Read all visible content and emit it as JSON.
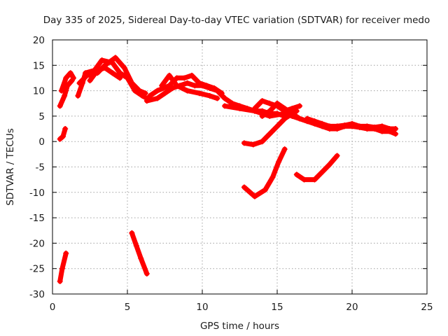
{
  "chart_data": {
    "type": "line",
    "title": "Day 335 of 2025, Sidereal Day-to-day VTEC variation (SDTVAR) for receiver medo",
    "xlabel": "GPS time / hours",
    "ylabel": "SDTVAR / TECUs",
    "xlim": [
      0,
      25
    ],
    "ylim": [
      -30,
      20
    ],
    "xticks": [
      0,
      5,
      10,
      15,
      20,
      25
    ],
    "yticks": [
      -30,
      -25,
      -20,
      -15,
      -10,
      -5,
      0,
      5,
      10,
      15,
      20
    ],
    "grid": true,
    "legend": "none",
    "color": "#ff0000",
    "series": [
      {
        "name": "track-01",
        "points": [
          [
            0.5,
            7.0
          ],
          [
            0.8,
            9.0
          ],
          [
            1.0,
            11.0
          ],
          [
            1.3,
            12.0
          ]
        ]
      },
      {
        "name": "track-02",
        "points": [
          [
            0.6,
            10.0
          ],
          [
            0.9,
            12.5
          ],
          [
            1.2,
            13.5
          ],
          [
            1.4,
            12.5
          ]
        ]
      },
      {
        "name": "track-03",
        "points": [
          [
            0.5,
            0.5
          ],
          [
            0.7,
            1.0
          ],
          [
            0.85,
            2.5
          ]
        ]
      },
      {
        "name": "track-04",
        "points": [
          [
            0.5,
            -27.5
          ],
          [
            0.65,
            -25.0
          ],
          [
            0.9,
            -22.0
          ]
        ]
      },
      {
        "name": "track-05",
        "points": [
          [
            1.7,
            9.0
          ],
          [
            2.0,
            11.5
          ],
          [
            2.2,
            13.5
          ],
          [
            2.8,
            14.0
          ],
          [
            3.3,
            16.0
          ],
          [
            4.0,
            15.5
          ],
          [
            4.5,
            13.5
          ],
          [
            5.0,
            12.5
          ],
          [
            5.5,
            10.0
          ],
          [
            6.0,
            9.0
          ],
          [
            6.3,
            8.5
          ]
        ]
      },
      {
        "name": "track-06",
        "points": [
          [
            1.8,
            11.5
          ],
          [
            2.3,
            13.0
          ],
          [
            3.0,
            13.5
          ],
          [
            3.5,
            15.0
          ],
          [
            4.2,
            16.5
          ],
          [
            4.8,
            14.5
          ],
          [
            5.3,
            11.5
          ],
          [
            5.8,
            10.0
          ],
          [
            6.2,
            9.5
          ]
        ]
      },
      {
        "name": "track-07",
        "points": [
          [
            2.5,
            12.0
          ],
          [
            3.0,
            14.0
          ],
          [
            3.5,
            14.5
          ],
          [
            4.0,
            13.5
          ],
          [
            4.5,
            12.5
          ]
        ]
      },
      {
        "name": "track-08",
        "points": [
          [
            5.3,
            -18.0
          ],
          [
            5.6,
            -20.5
          ],
          [
            5.9,
            -23.0
          ],
          [
            6.3,
            -26.0
          ]
        ]
      },
      {
        "name": "track-09",
        "points": [
          [
            6.3,
            8.0
          ],
          [
            7.0,
            8.5
          ],
          [
            7.5,
            9.5
          ],
          [
            8.0,
            10.5
          ],
          [
            8.5,
            11.0
          ],
          [
            9.0,
            11.5
          ],
          [
            9.5,
            11.0
          ],
          [
            10.0,
            11.0
          ],
          [
            10.5,
            10.5
          ],
          [
            11.0,
            10.0
          ],
          [
            11.5,
            8.5
          ],
          [
            12.0,
            7.5
          ],
          [
            12.5,
            7.0
          ],
          [
            13.0,
            6.5
          ],
          [
            13.5,
            6.0
          ],
          [
            14.0,
            6.0
          ],
          [
            14.5,
            5.5
          ],
          [
            15.0,
            5.5
          ],
          [
            15.5,
            5.0
          ]
        ]
      },
      {
        "name": "track-10",
        "points": [
          [
            6.5,
            9.0
          ],
          [
            7.0,
            10.0
          ],
          [
            7.8,
            11.0
          ],
          [
            8.3,
            12.5
          ],
          [
            8.8,
            12.5
          ],
          [
            9.3,
            13.0
          ],
          [
            9.8,
            11.5
          ],
          [
            10.3,
            11.0
          ],
          [
            10.8,
            10.5
          ],
          [
            11.3,
            9.5
          ]
        ]
      },
      {
        "name": "track-11",
        "points": [
          [
            7.3,
            11.0
          ],
          [
            7.8,
            13.0
          ],
          [
            8.3,
            11.0
          ],
          [
            9.0,
            10.0
          ],
          [
            9.8,
            9.5
          ],
          [
            10.5,
            9.0
          ],
          [
            11.0,
            8.5
          ]
        ]
      },
      {
        "name": "track-12",
        "points": [
          [
            11.5,
            7.0
          ],
          [
            12.5,
            6.5
          ],
          [
            13.5,
            6.0
          ],
          [
            14.5,
            5.0
          ],
          [
            15.5,
            5.5
          ],
          [
            16.0,
            5.0
          ],
          [
            16.5,
            4.5
          ],
          [
            17.0,
            4.0
          ]
        ]
      },
      {
        "name": "track-13",
        "points": [
          [
            13.5,
            6.5
          ],
          [
            14.0,
            8.0
          ],
          [
            14.5,
            7.5
          ],
          [
            15.0,
            7.0
          ],
          [
            15.5,
            6.0
          ],
          [
            16.0,
            6.5
          ],
          [
            16.5,
            7.0
          ]
        ]
      },
      {
        "name": "track-14",
        "points": [
          [
            14.0,
            5.0
          ],
          [
            14.5,
            6.0
          ],
          [
            15.0,
            7.5
          ],
          [
            15.5,
            6.5
          ],
          [
            16.0,
            5.5
          ],
          [
            16.5,
            4.5
          ],
          [
            17.0,
            4.0
          ],
          [
            17.5,
            3.5
          ],
          [
            18.0,
            3.0
          ],
          [
            18.5,
            2.5
          ],
          [
            19.0,
            2.5
          ],
          [
            19.5,
            3.0
          ],
          [
            20.0,
            3.0
          ],
          [
            20.5,
            2.8
          ],
          [
            21.0,
            2.5
          ],
          [
            21.5,
            2.5
          ],
          [
            22.0,
            2.0
          ],
          [
            22.5,
            2.0
          ],
          [
            22.9,
            1.5
          ]
        ]
      },
      {
        "name": "track-15",
        "points": [
          [
            17.0,
            4.5
          ],
          [
            17.5,
            4.0
          ],
          [
            18.0,
            3.5
          ],
          [
            18.5,
            3.0
          ],
          [
            19.0,
            3.0
          ],
          [
            19.5,
            3.2
          ],
          [
            20.0,
            3.5
          ],
          [
            20.5,
            3.0
          ],
          [
            21.0,
            3.0
          ],
          [
            21.5,
            2.8
          ],
          [
            22.0,
            3.0
          ],
          [
            22.5,
            2.5
          ],
          [
            22.9,
            2.5
          ]
        ]
      },
      {
        "name": "track-16",
        "points": [
          [
            12.8,
            -0.3
          ],
          [
            13.4,
            -0.6
          ],
          [
            14.0,
            0.0
          ],
          [
            14.5,
            1.5
          ],
          [
            15.0,
            3.0
          ],
          [
            15.5,
            4.5
          ],
          [
            16.0,
            5.5
          ],
          [
            16.3,
            6.0
          ]
        ]
      },
      {
        "name": "track-17",
        "points": [
          [
            12.8,
            -9.0
          ],
          [
            13.5,
            -10.8
          ],
          [
            14.2,
            -9.5
          ],
          [
            14.7,
            -7.0
          ],
          [
            15.1,
            -4.0
          ],
          [
            15.5,
            -1.5
          ]
        ]
      },
      {
        "name": "track-18",
        "points": [
          [
            16.3,
            -6.5
          ],
          [
            16.8,
            -7.5
          ],
          [
            17.5,
            -7.5
          ],
          [
            18.0,
            -6.0
          ],
          [
            18.5,
            -4.5
          ],
          [
            19.0,
            -2.8
          ]
        ]
      }
    ]
  }
}
